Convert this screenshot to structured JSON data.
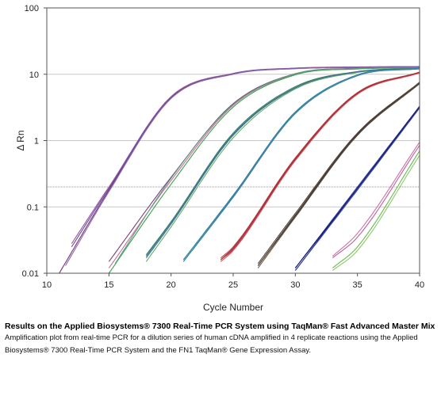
{
  "chart_data": {
    "type": "line",
    "xlabel": "Cycle Number",
    "ylabel": "Δ Rn",
    "xlim": [
      10,
      40
    ],
    "ylim": [
      0.01,
      100
    ],
    "yscale": "log",
    "x_ticks": [
      "10",
      "15",
      "20",
      "25",
      "30",
      "35",
      "40"
    ],
    "y_ticks": [
      "0.01",
      "0.1",
      "1",
      "10",
      "100"
    ],
    "threshold": 0.2,
    "grid": "horizontal at decades",
    "series": [
      {
        "color": "#7a2f7a",
        "x": [
          11.0,
          15,
          20,
          25,
          30,
          35,
          40
        ],
        "y": [
          0.01,
          0.18,
          4.5,
          10.2,
          12.3,
          12.8,
          13.0
        ]
      },
      {
        "color": "#a0529a",
        "x": [
          12.0,
          15,
          20,
          25,
          30,
          35,
          40
        ],
        "y": [
          0.028,
          0.2,
          4.6,
          10.3,
          12.4,
          12.9,
          13.1
        ]
      },
      {
        "color": "#5a4fa0",
        "x": [
          12.0,
          15,
          20,
          25,
          30,
          35,
          40
        ],
        "y": [
          0.025,
          0.19,
          4.4,
          10.1,
          12.2,
          12.7,
          12.9
        ]
      },
      {
        "color": "#8a6aa8",
        "x": [
          11.5,
          15,
          20,
          25,
          30,
          35,
          40
        ],
        "y": [
          0.013,
          0.17,
          4.3,
          10.0,
          12.1,
          12.6,
          12.8
        ]
      },
      {
        "color": "#7a3f7e",
        "x": [
          15.0,
          20,
          25,
          30,
          35,
          40
        ],
        "y": [
          0.015,
          0.28,
          3.6,
          10.2,
          12.3,
          12.6
        ]
      },
      {
        "color": "#d06aa0",
        "x": [
          15.0,
          20,
          25,
          30,
          35,
          40
        ],
        "y": [
          0.012,
          0.25,
          3.4,
          10.0,
          12.2,
          12.5
        ]
      },
      {
        "color": "#3aa04a",
        "x": [
          15.0,
          20,
          25,
          30,
          35,
          40
        ],
        "y": [
          0.01,
          0.22,
          3.2,
          9.8,
          12.0,
          12.4
        ]
      },
      {
        "color": "#5fa080",
        "x": [
          15.5,
          20,
          25,
          30,
          35,
          40
        ],
        "y": [
          0.014,
          0.27,
          3.5,
          10.1,
          12.2,
          12.5
        ]
      },
      {
        "color": "#3a8a60",
        "x": [
          18.0,
          20,
          25,
          30,
          35,
          40
        ],
        "y": [
          0.019,
          0.06,
          1.3,
          6.5,
          11.0,
          12.3
        ]
      },
      {
        "color": "#2e8080",
        "x": [
          18.0,
          20,
          25,
          30,
          35,
          40
        ],
        "y": [
          0.017,
          0.055,
          1.2,
          6.2,
          10.8,
          12.2
        ]
      },
      {
        "color": "#6aaa6a",
        "x": [
          18.0,
          20,
          25,
          30,
          35,
          40
        ],
        "y": [
          0.015,
          0.05,
          1.1,
          6.0,
          10.6,
          12.0
        ]
      },
      {
        "color": "#4a6a9a",
        "x": [
          18.0,
          20,
          25,
          30,
          35,
          40
        ],
        "y": [
          0.018,
          0.058,
          1.25,
          6.3,
          10.9,
          12.2
        ]
      },
      {
        "color": "#2a6a9a",
        "x": [
          21.0,
          25,
          30,
          35,
          40
        ],
        "y": [
          0.016,
          0.15,
          2.7,
          9.8,
          12.3
        ]
      },
      {
        "color": "#3a8aa0",
        "x": [
          21.0,
          25,
          30,
          35,
          40
        ],
        "y": [
          0.015,
          0.14,
          2.6,
          9.6,
          12.2
        ]
      },
      {
        "color": "#2a9a9a",
        "x": [
          21.0,
          25,
          30,
          35,
          40
        ],
        "y": [
          0.016,
          0.145,
          2.65,
          9.7,
          12.2
        ]
      },
      {
        "color": "#4a7ab0",
        "x": [
          21.0,
          25,
          30,
          35,
          40
        ],
        "y": [
          0.015,
          0.14,
          2.55,
          9.5,
          12.1
        ]
      },
      {
        "color": "#c0403a",
        "x": [
          24.0,
          25,
          30,
          35,
          40
        ],
        "y": [
          0.017,
          0.025,
          0.55,
          5.3,
          10.8
        ]
      },
      {
        "color": "#b0304a",
        "x": [
          24.0,
          25,
          30,
          35,
          40
        ],
        "y": [
          0.016,
          0.023,
          0.52,
          5.1,
          10.6
        ]
      },
      {
        "color": "#d05050",
        "x": [
          24.0,
          25,
          30,
          35,
          40
        ],
        "y": [
          0.015,
          0.022,
          0.5,
          5.0,
          10.5
        ]
      },
      {
        "color": "#a03040",
        "x": [
          24.0,
          25,
          30,
          35,
          40
        ],
        "y": [
          0.016,
          0.024,
          0.53,
          5.2,
          10.7
        ]
      },
      {
        "color": "#2a2a2a",
        "x": [
          27.0,
          30,
          35,
          40
        ],
        "y": [
          0.013,
          0.075,
          1.25,
          7.4
        ]
      },
      {
        "color": "#5a4030",
        "x": [
          27.0,
          30,
          35,
          40
        ],
        "y": [
          0.014,
          0.08,
          1.3,
          7.6
        ]
      },
      {
        "color": "#7a5a3a",
        "x": [
          27.0,
          30,
          35,
          40
        ],
        "y": [
          0.012,
          0.07,
          1.2,
          7.2
        ]
      },
      {
        "color": "#4a4a4a",
        "x": [
          27.0,
          30,
          35,
          40
        ],
        "y": [
          0.013,
          0.072,
          1.22,
          7.3
        ]
      },
      {
        "color": "#1a2a7a",
        "x": [
          30.0,
          35,
          40
        ],
        "y": [
          0.011,
          0.19,
          3.2
        ]
      },
      {
        "color": "#2a3a9a",
        "x": [
          30.0,
          35,
          40
        ],
        "y": [
          0.012,
          0.2,
          3.3
        ]
      },
      {
        "color": "#3a4aaa",
        "x": [
          30.0,
          35,
          40
        ],
        "y": [
          0.011,
          0.18,
          3.1
        ]
      },
      {
        "color": "#1a1a6a",
        "x": [
          30.0,
          35,
          40
        ],
        "y": [
          0.012,
          0.19,
          3.25
        ]
      },
      {
        "color": "#d070a0",
        "x": [
          33.0,
          35,
          40
        ],
        "y": [
          0.018,
          0.04,
          0.95
        ]
      },
      {
        "color": "#c060a0",
        "x": [
          33.0,
          35,
          40
        ],
        "y": [
          0.017,
          0.035,
          0.85
        ]
      },
      {
        "color": "#6aba4a",
        "x": [
          33.0,
          35,
          40
        ],
        "y": [
          0.012,
          0.025,
          0.7
        ]
      },
      {
        "color": "#8aca6a",
        "x": [
          33.0,
          35,
          40
        ],
        "y": [
          0.011,
          0.022,
          0.6
        ]
      }
    ]
  },
  "caption": {
    "title": "Results on the Applied Biosystems® 7300 Real-Time PCR System using TaqMan® Fast Advanced Master Mix",
    "body": "Amplification plot from real-time PCR for a dilution series of human cDNA amplified in 4 replicate reactions using the Applied Biosystems® 7300 Real-Time PCR System and the FN1 TaqMan® Gene Expression Assay."
  }
}
